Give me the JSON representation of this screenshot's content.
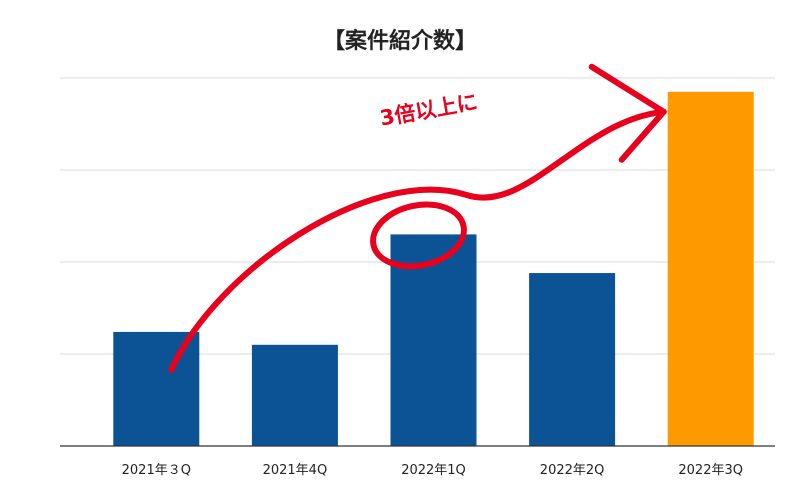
{
  "chart_data": {
    "type": "bar",
    "title": "【案件紹介数】",
    "categories": [
      "2021年３Q",
      "2021年4Q",
      "2022年1Q",
      "2022年2Q",
      "2022年3Q"
    ],
    "values": [
      1.24,
      1.1,
      2.3,
      1.88,
      3.85
    ],
    "ylim": [
      0,
      4
    ],
    "y_gridlines": [
      1,
      2,
      3,
      4
    ],
    "grid": true,
    "legend": "none",
    "bar_colors": [
      "#0b5394",
      "#0b5394",
      "#0b5394",
      "#0b5394",
      "#ff9900"
    ],
    "annotation": {
      "text": "3倍以上に",
      "color": "#e8001c",
      "from_category": "2021年３Q",
      "to_category": "2022年3Q",
      "circled_category": "2022年1Q"
    }
  }
}
